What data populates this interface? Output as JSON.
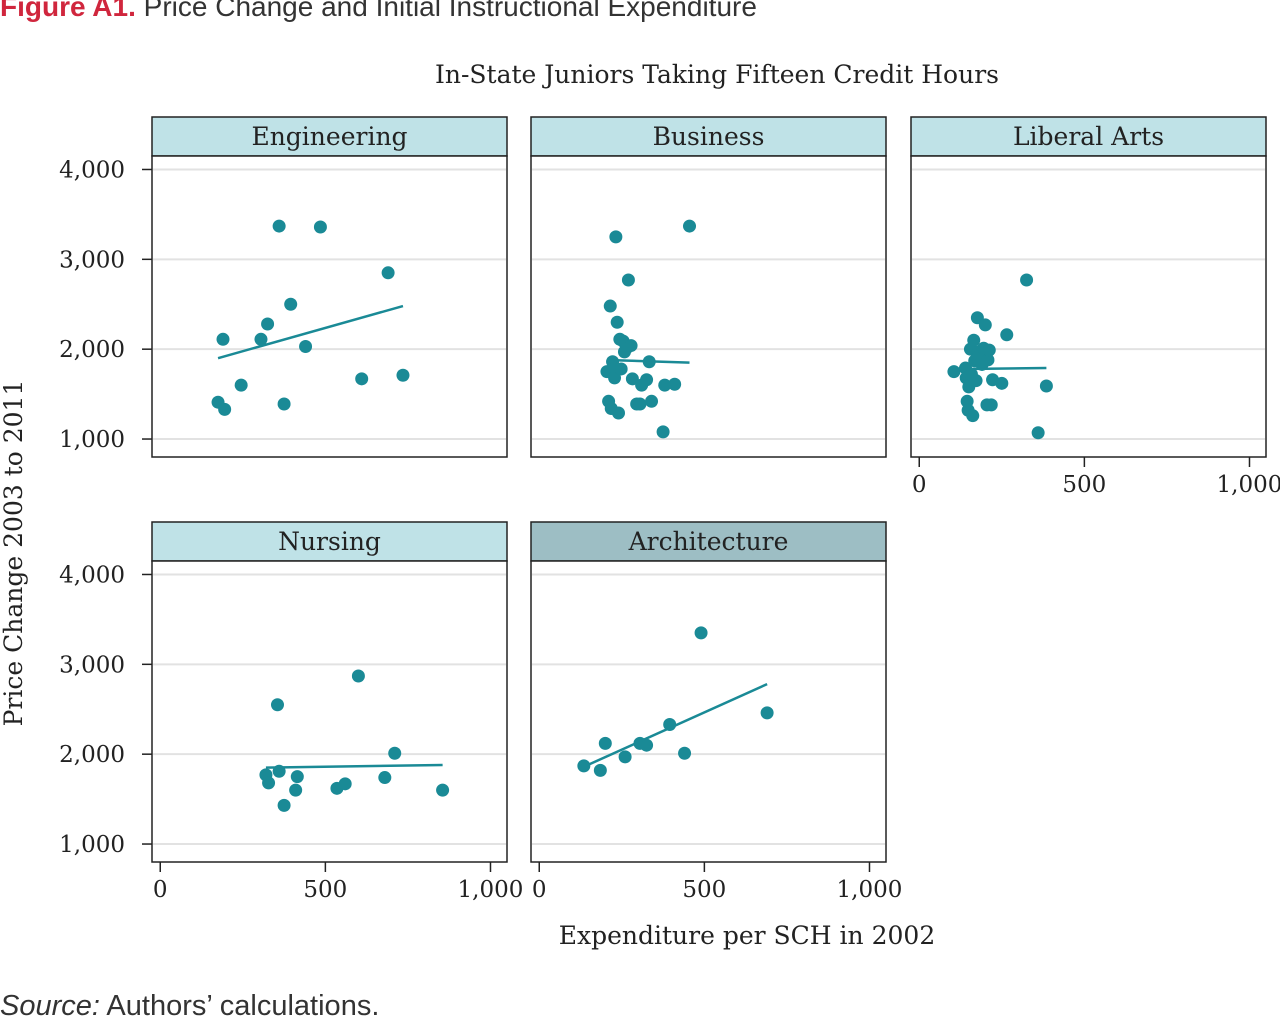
{
  "figure": {
    "label": "Figure A1.",
    "title": "Price Change and Initial Instructional Expenditure"
  },
  "source": {
    "label": "Source:",
    "text": "Authors’ calculations."
  },
  "colors": {
    "points": "#1a8a96",
    "fit_line": "#1a8a96",
    "strip_bg": "#bfe2e7",
    "strip_bg_selected": "#9dbec4",
    "gridline": "#e2e2e2",
    "axis": "#222222"
  },
  "chart_data": {
    "type": "scatter",
    "title": "In-State Juniors Taking Fifteen Credit Hours",
    "xlabel": "Expenditure per SCH in 2002",
    "ylabel": "Price Change 2003 to 2011",
    "xlim": [
      -25,
      1050
    ],
    "ylim": [
      800,
      4150
    ],
    "xticks": [
      0,
      500,
      1000
    ],
    "xtick_labels": [
      "0",
      "500",
      "1,000"
    ],
    "yticks": [
      1000,
      2000,
      3000,
      4000
    ],
    "ytick_labels": [
      "1,000",
      "2,000",
      "3,000",
      "4,000"
    ],
    "grid": true,
    "legend": "none",
    "panels": [
      {
        "name": "Engineering",
        "points": [
          [
            175,
            1410
          ],
          [
            190,
            2110
          ],
          [
            195,
            1330
          ],
          [
            245,
            1600
          ],
          [
            305,
            2110
          ],
          [
            325,
            2280
          ],
          [
            360,
            3370
          ],
          [
            375,
            1390
          ],
          [
            395,
            2500
          ],
          [
            440,
            2030
          ],
          [
            485,
            3360
          ],
          [
            610,
            1670
          ],
          [
            690,
            2850
          ],
          [
            735,
            1710
          ]
        ],
        "fit": [
          [
            175,
            1900
          ],
          [
            735,
            2480
          ]
        ]
      },
      {
        "name": "Business",
        "points": [
          [
            205,
            1750
          ],
          [
            210,
            1420
          ],
          [
            215,
            2480
          ],
          [
            218,
            1340
          ],
          [
            222,
            1860
          ],
          [
            225,
            1780
          ],
          [
            228,
            1680
          ],
          [
            232,
            3250
          ],
          [
            236,
            2300
          ],
          [
            240,
            1290
          ],
          [
            244,
            2110
          ],
          [
            248,
            1780
          ],
          [
            254,
            2090
          ],
          [
            258,
            1970
          ],
          [
            264,
            2010
          ],
          [
            270,
            2770
          ],
          [
            278,
            2040
          ],
          [
            282,
            1670
          ],
          [
            295,
            1390
          ],
          [
            305,
            1390
          ],
          [
            310,
            1600
          ],
          [
            325,
            1660
          ],
          [
            333,
            1860
          ],
          [
            340,
            1420
          ],
          [
            375,
            1080
          ],
          [
            380,
            1600
          ],
          [
            410,
            1610
          ],
          [
            455,
            3370
          ]
        ],
        "fit": [
          [
            205,
            1880
          ],
          [
            455,
            1850
          ]
        ]
      },
      {
        "name": "Liberal Arts",
        "points": [
          [
            105,
            1750
          ],
          [
            140,
            1790
          ],
          [
            142,
            1680
          ],
          [
            145,
            1420
          ],
          [
            148,
            1320
          ],
          [
            150,
            1580
          ],
          [
            155,
            2000
          ],
          [
            158,
            1720
          ],
          [
            162,
            1260
          ],
          [
            165,
            2100
          ],
          [
            168,
            1870
          ],
          [
            172,
            1650
          ],
          [
            176,
            2350
          ],
          [
            180,
            1970
          ],
          [
            184,
            1940
          ],
          [
            190,
            1830
          ],
          [
            195,
            2010
          ],
          [
            200,
            2270
          ],
          [
            205,
            1380
          ],
          [
            208,
            1880
          ],
          [
            212,
            1990
          ],
          [
            218,
            1380
          ],
          [
            222,
            1660
          ],
          [
            250,
            1620
          ],
          [
            265,
            2160
          ],
          [
            325,
            2770
          ],
          [
            360,
            1070
          ],
          [
            385,
            1590
          ]
        ],
        "fit": [
          [
            140,
            1780
          ],
          [
            385,
            1790
          ]
        ]
      },
      {
        "name": "Nursing",
        "points": [
          [
            320,
            1770
          ],
          [
            328,
            1680
          ],
          [
            355,
            2550
          ],
          [
            360,
            1810
          ],
          [
            375,
            1430
          ],
          [
            410,
            1600
          ],
          [
            415,
            1750
          ],
          [
            535,
            1620
          ],
          [
            560,
            1670
          ],
          [
            600,
            2870
          ],
          [
            680,
            1740
          ],
          [
            710,
            2010
          ],
          [
            855,
            1600
          ]
        ],
        "fit": [
          [
            320,
            1850
          ],
          [
            855,
            1880
          ]
        ]
      },
      {
        "name": "Architecture",
        "selected": true,
        "points": [
          [
            135,
            1870
          ],
          [
            185,
            1820
          ],
          [
            200,
            2120
          ],
          [
            260,
            1970
          ],
          [
            305,
            2120
          ],
          [
            325,
            2100
          ],
          [
            395,
            2330
          ],
          [
            440,
            2010
          ],
          [
            490,
            3350
          ],
          [
            690,
            2460
          ]
        ],
        "fit": [
          [
            135,
            1860
          ],
          [
            690,
            2780
          ]
        ]
      }
    ]
  }
}
